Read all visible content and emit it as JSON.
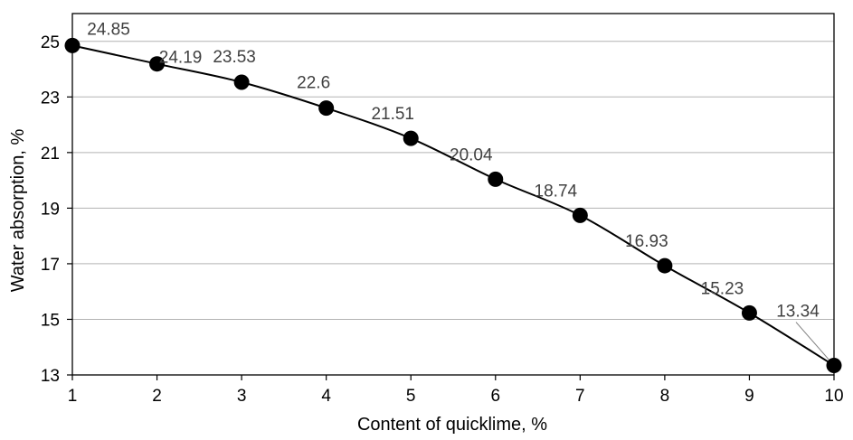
{
  "chart_data": {
    "type": "scatter",
    "title": "",
    "xlabel": "Content of quicklime, %",
    "ylabel": "Water absorption, %",
    "xlim": [
      1,
      10
    ],
    "ylim": [
      13,
      26
    ],
    "x_ticks": [
      1,
      2,
      3,
      4,
      5,
      6,
      7,
      8,
      9,
      10
    ],
    "y_ticks": [
      13,
      15,
      17,
      19,
      21,
      23,
      25
    ],
    "grid": "horizontal",
    "trendline": "smooth curve through points",
    "series": [
      {
        "x": [
          1,
          2,
          3,
          4,
          5,
          6,
          7,
          8,
          9,
          10
        ],
        "y": [
          24.85,
          24.19,
          23.53,
          22.6,
          21.51,
          20.04,
          18.74,
          16.93,
          15.23,
          13.34
        ],
        "labels": [
          "24.85",
          "24.19",
          "23.53",
          "22.6",
          "21.51",
          "20.04",
          "18.74",
          "16.93",
          "15.23",
          "13.34"
        ]
      }
    ]
  }
}
